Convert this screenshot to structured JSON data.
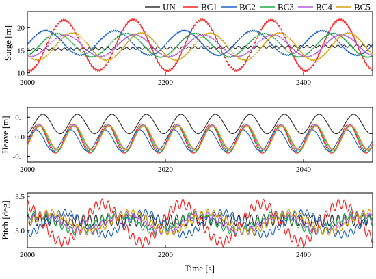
{
  "chart_data": {
    "type": "line",
    "legend": {
      "placement": "top-right",
      "entries": [
        {
          "name": "UN",
          "color": "#333333"
        },
        {
          "name": "BC1",
          "color": "#ff2020"
        },
        {
          "name": "BC2",
          "color": "#1f63c6"
        },
        {
          "name": "BC3",
          "color": "#22a84a"
        },
        {
          "name": "BC4",
          "color": "#b060d8"
        },
        {
          "name": "BC5",
          "color": "#d8a010"
        }
      ]
    },
    "panels": [
      {
        "ylabel": "Surge [m]",
        "xlabel": "",
        "xlim": [
          2000,
          2500
        ],
        "ylim": [
          9.5,
          23.5
        ],
        "xticks": [
          2000,
          2200,
          2400
        ],
        "yticks": [
          10,
          15,
          20
        ],
        "series": [
          {
            "name": "UN",
            "model": {
              "mean": 15.2,
              "drift": 0.0015,
              "amp": 0.25,
              "period": 9.0,
              "phase": 0.3
            }
          },
          {
            "name": "BC1",
            "model": {
              "mean": 16.1,
              "amp": 5.6,
              "period": 100.0,
              "phase_x": 2028,
              "hf_amp": 0.25,
              "hf_period": 3.0
            }
          },
          {
            "name": "BC2",
            "model": {
              "mean": 16.6,
              "amp": 2.7,
              "period": 100.0,
              "phase_x": 2002,
              "hf_amp": 0.15,
              "hf_period": 3.0
            }
          },
          {
            "name": "BC3",
            "model": {
              "mean": 16.1,
              "amp": 2.6,
              "period": 100.0,
              "phase_x": 2018,
              "hf_amp": 0.12,
              "hf_period": 3.0
            }
          },
          {
            "name": "BC4",
            "model": {
              "mean": 16.0,
              "amp": 2.4,
              "period": 100.0,
              "phase_x": 2030,
              "hf_amp": 0.12,
              "hf_period": 3.0
            }
          },
          {
            "name": "BC5",
            "model": {
              "mean": 15.8,
              "amp": 3.0,
              "period": 100.0,
              "phase_x": 2040,
              "hf_amp": 0.12,
              "hf_period": 3.0
            }
          }
        ]
      },
      {
        "ylabel": "Heave [m]",
        "xlabel": "",
        "xlim": [
          2000,
          2050
        ],
        "ylim": [
          -0.13,
          0.15
        ],
        "xticks": [
          2000,
          2020,
          2040
        ],
        "yticks": [
          -0.1,
          0,
          0.1
        ],
        "ytick_labels": [
          "-0.1",
          "0.0",
          "0.1"
        ],
        "series": [
          {
            "name": "UN",
            "model": {
              "mean": 0.065,
              "amp": 0.05,
              "period": 5.0,
              "phase_x": 2001.0
            }
          },
          {
            "name": "BC1",
            "model": {
              "mean": -0.01,
              "amp": 0.075,
              "period": 5.0,
              "phase_x": 2000.3
            }
          },
          {
            "name": "BC2",
            "model": {
              "mean": -0.02,
              "amp": 0.055,
              "period": 5.0,
              "phase_x": 2000.0
            }
          },
          {
            "name": "BC3",
            "model": {
              "mean": -0.01,
              "amp": 0.07,
              "period": 5.0,
              "phase_x": 2000.45
            }
          },
          {
            "name": "BC4",
            "model": {
              "mean": -0.005,
              "amp": 0.065,
              "period": 5.0,
              "phase_x": 2000.55
            }
          },
          {
            "name": "BC5",
            "model": {
              "mean": -0.005,
              "amp": 0.06,
              "period": 5.0,
              "phase_x": 2000.6
            }
          }
        ]
      },
      {
        "ylabel": "Pitch [deg]",
        "xlabel": "Time [s]",
        "xlim": [
          2000,
          2500
        ],
        "ylim": [
          2.75,
          3.55
        ],
        "xticks": [
          2000,
          2200,
          2400
        ],
        "yticks": [
          3.0,
          3.5
        ],
        "ytick_labels": [
          "3.0",
          "3.5"
        ],
        "series": [
          {
            "name": "UN",
            "model": {
              "mean": 3.15,
              "amp": 0.0,
              "period": 100.0,
              "phase_x": 2000,
              "hf_amp": 0.08,
              "hf_period": 9.0
            }
          },
          {
            "name": "BC1",
            "model": {
              "mean": 3.11,
              "amp": 0.28,
              "period": 115.0,
              "phase_x": 2080,
              "hf_amp": 0.07,
              "hf_period": 9.0
            }
          },
          {
            "name": "BC2",
            "model": {
              "mean": 3.1,
              "amp": 0.16,
              "period": 115.0,
              "phase_x": 2140,
              "hf_amp": 0.05,
              "hf_period": 9.0
            }
          },
          {
            "name": "BC3",
            "model": {
              "mean": 3.11,
              "amp": 0.12,
              "period": 115.0,
              "phase_x": 2100,
              "hf_amp": 0.05,
              "hf_period": 9.0
            }
          },
          {
            "name": "BC4",
            "model": {
              "mean": 3.11,
              "amp": 0.12,
              "period": 115.0,
              "phase_x": 2110,
              "hf_amp": 0.05,
              "hf_period": 9.0
            }
          },
          {
            "name": "BC5",
            "model": {
              "mean": 3.12,
              "amp": 0.14,
              "period": 115.0,
              "phase_x": 2120,
              "hf_amp": 0.05,
              "hf_period": 9.0
            }
          }
        ]
      }
    ]
  }
}
